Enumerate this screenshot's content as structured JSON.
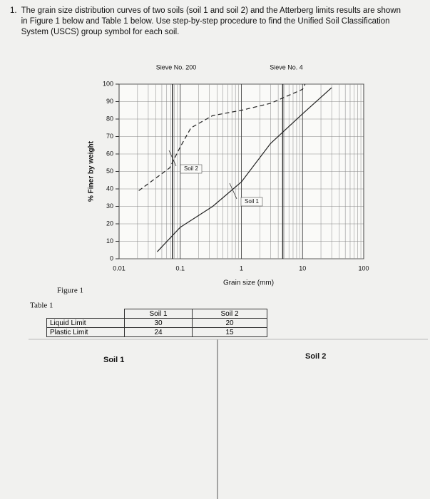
{
  "question": {
    "number": "1.",
    "text": "The grain size distribution curves of two soils (soil 1 and soil 2) and the Atterberg limits results are shown in Figure 1 below and Table 1 below. Use step-by-step procedure to find the Unified Soil Classification System (USCS) group symbol for each soil."
  },
  "chart_data": {
    "type": "line",
    "xlabel": "Grain size (mm)",
    "ylabel": "% Finer by weight",
    "xlog": true,
    "xlim": [
      0.01,
      100
    ],
    "xticks": [
      0.01,
      0.1,
      1,
      10,
      100
    ],
    "ylim": [
      0,
      100
    ],
    "yticks": [
      0,
      10,
      20,
      30,
      40,
      50,
      60,
      70,
      80,
      90,
      100
    ],
    "grid": true,
    "annotations": [
      {
        "text": "Sieve No. 200",
        "x": 0.075
      },
      {
        "text": "Sieve No. 4",
        "x": 4.75
      }
    ],
    "series": [
      {
        "name": "Soil 1",
        "color": "#222222",
        "dashed": false,
        "x": [
          0.042,
          0.1,
          0.34,
          1,
          3,
          10,
          30
        ],
        "values": [
          4,
          18,
          30,
          44,
          66,
          83,
          98
        ]
      },
      {
        "name": "Soil 2",
        "color": "#222222",
        "dashed": true,
        "x": [
          0.021,
          0.067,
          0.1,
          0.15,
          0.34,
          1,
          3,
          10,
          11
        ],
        "values": [
          39,
          52,
          64,
          75,
          82,
          85,
          89,
          97,
          100
        ]
      }
    ]
  },
  "figure_caption": "Figure 1",
  "table": {
    "title": "Table 1",
    "headers": [
      "Soil 1",
      "Soil 2"
    ],
    "rows": [
      {
        "label": "Liquid Limit",
        "values": [
          30,
          20
        ]
      },
      {
        "label": "Plastic Limit",
        "values": [
          24,
          15
        ]
      }
    ]
  },
  "answers": [
    "Soil 1",
    "Soil 2"
  ]
}
